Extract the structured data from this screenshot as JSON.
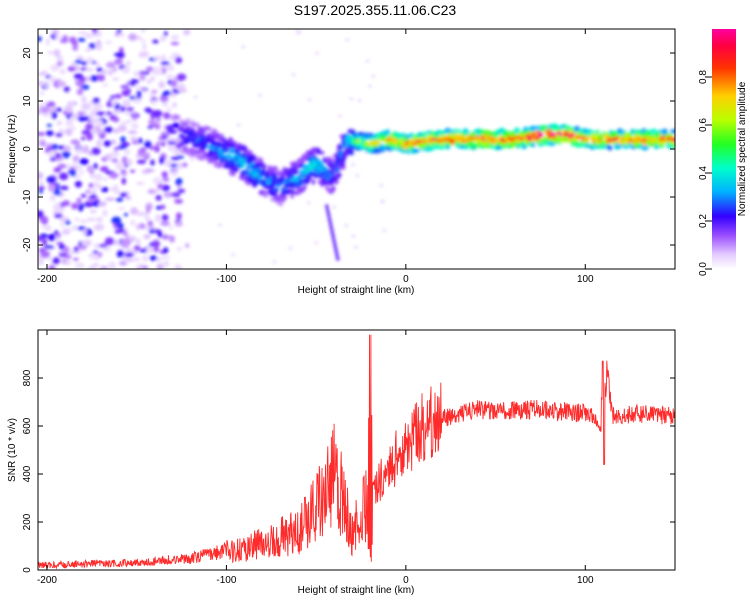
{
  "title": "S197.2025.355.11.06.C23",
  "colors": {
    "snr_line": "#ff2a2a",
    "spec_low": "#7700ff",
    "spec_high": "#ff0000"
  },
  "chart_data": [
    {
      "type": "heatmap",
      "name": "spectrogram",
      "xlabel": "Height of straight line (km)",
      "ylabel": "Frequency (Hz)",
      "xlim": [
        -205,
        150
      ],
      "ylim": [
        -25,
        25
      ],
      "xticks": [
        -200,
        -100,
        0,
        100
      ],
      "yticks": [
        -20,
        -10,
        0,
        10,
        20
      ],
      "colorbar": {
        "label": "Normalized spectral amplitude",
        "range": [
          0,
          1
        ],
        "ticks": [
          0.0,
          0.2,
          0.4,
          0.6,
          0.8
        ]
      },
      "ridge": {
        "description": "dominant frequency track vs height",
        "x": [
          -125,
          -110,
          -100,
          -90,
          -80,
          -70,
          -60,
          -50,
          -40,
          -33,
          -30,
          -20,
          -10,
          0,
          20,
          40,
          60,
          80,
          90,
          100,
          110,
          130,
          150
        ],
        "y": [
          3,
          1,
          -1,
          -3,
          -6,
          -8,
          -6,
          -3,
          -6,
          2,
          2,
          1,
          2,
          1,
          2,
          2,
          2,
          3,
          3,
          2,
          2,
          2,
          2
        ],
        "amplitude": [
          0.25,
          0.3,
          0.35,
          0.4,
          0.35,
          0.3,
          0.35,
          0.4,
          0.3,
          0.35,
          0.5,
          0.75,
          0.8,
          0.9,
          0.9,
          0.95,
          0.95,
          1.0,
          0.95,
          0.9,
          0.85,
          0.9,
          0.9
        ]
      }
    },
    {
      "type": "line",
      "name": "snr",
      "xlabel": "Height of straight line (km)",
      "ylabel": "SNR (10 * v/v)",
      "xlim": [
        -205,
        150
      ],
      "ylim": [
        0,
        1000
      ],
      "xticks": [
        -200,
        -100,
        0,
        100
      ],
      "yticks": [
        0,
        200,
        400,
        600,
        800
      ],
      "series": [
        {
          "name": "SNR",
          "x": [
            -205,
            -180,
            -150,
            -120,
            -100,
            -80,
            -60,
            -50,
            -40,
            -35,
            -30,
            -20,
            -10,
            0,
            10,
            20,
            30,
            40,
            50,
            70,
            90,
            105,
            110,
            112,
            115,
            130,
            150
          ],
          "y": [
            20,
            25,
            30,
            50,
            80,
            110,
            160,
            250,
            420,
            300,
            150,
            300,
            420,
            520,
            600,
            630,
            650,
            670,
            660,
            670,
            660,
            650,
            540,
            840,
            640,
            650,
            640
          ],
          "spikes": [
            {
              "x": -20,
              "y": 980
            },
            {
              "x": 110,
              "y": 870
            }
          ]
        }
      ]
    }
  ]
}
